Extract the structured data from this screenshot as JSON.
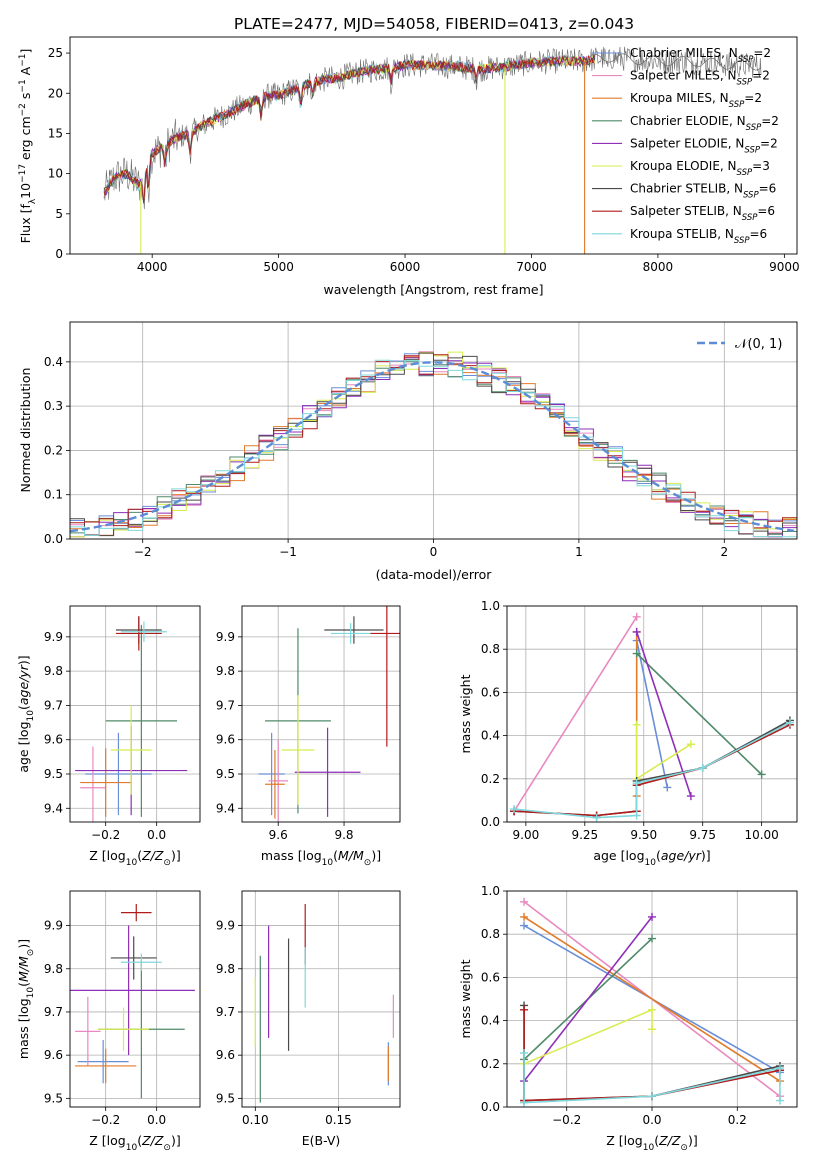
{
  "figure": {
    "title": "PLATE=2477, MJD=54058, FIBERID=0413, z=0.043"
  },
  "models": [
    {
      "name": "Chabrier MILES, N_SSP=2",
      "label": "Chabrier MILES, N",
      "sub": "SSP",
      "tail": "=2",
      "color": "#6a8fd8"
    },
    {
      "name": "Salpeter MILES, N_SSP=2",
      "label": "Salpeter MILES, N",
      "sub": "SSP",
      "tail": "=2",
      "color": "#e889c0"
    },
    {
      "name": "Kroupa MILES, N_SSP=2",
      "label": "Kroupa MILES, N",
      "sub": "SSP",
      "tail": "=2",
      "color": "#e07b2a"
    },
    {
      "name": "Chabrier ELODIE, N_SSP=2",
      "label": "Chabrier ELODIE, N",
      "sub": "SSP",
      "tail": "=2",
      "color": "#4f8a69"
    },
    {
      "name": "Salpeter ELODIE, N_SSP=2",
      "label": "Salpeter ELODIE, N",
      "sub": "SSP",
      "tail": "=2",
      "color": "#8e2fb8"
    },
    {
      "name": "Kroupa ELODIE, N_SSP=3",
      "label": "Kroupa ELODIE, N",
      "sub": "SSP",
      "tail": "=3",
      "color": "#d8ec4f"
    },
    {
      "name": "Chabrier STELIB, N_SSP=6",
      "label": "Chabrier STELIB, N",
      "sub": "SSP",
      "tail": "=6",
      "color": "#4a4a4a"
    },
    {
      "name": "Salpeter STELIB, N_SSP=6",
      "label": "Salpeter STELIB, N",
      "sub": "SSP",
      "tail": "=6",
      "color": "#b01c1c"
    },
    {
      "name": "Kroupa STELIB, N_SSP=6",
      "label": "Kroupa STELIB, N",
      "sub": "SSP",
      "tail": "=6",
      "color": "#7fd8dc"
    }
  ],
  "chart_data": [
    {
      "id": "spectrum",
      "type": "line",
      "xlabel": "wavelength [Angstrom, rest frame]",
      "ylabel": "Flux [f_λ 10^-17 erg cm^-2 s^-1 A^-1]",
      "xlim": [
        3350,
        9100
      ],
      "ylim": [
        0,
        27
      ],
      "xticks": [
        4000,
        5000,
        6000,
        7000,
        8000,
        9000
      ],
      "yticks": [
        0,
        5,
        10,
        15,
        20,
        25
      ],
      "legend": "upper right",
      "grid": false,
      "continuum": {
        "x": [
          3620,
          3700,
          3800,
          3900,
          3950,
          4000,
          4100,
          4200,
          4300,
          4400,
          4500,
          4600,
          4700,
          4800,
          4900,
          5000,
          5100,
          5200,
          5300,
          5400,
          5500,
          5600,
          5700,
          5800,
          5900,
          6000,
          6200,
          6400,
          6600,
          6800,
          7000,
          7200,
          7400,
          7600,
          7800,
          8000,
          8200,
          8400,
          8600,
          8800
        ],
        "y": [
          7.5,
          9.5,
          10.0,
          8.5,
          11.0,
          12.5,
          13.5,
          14.5,
          15.0,
          16.0,
          16.8,
          17.5,
          18.3,
          19.0,
          19.6,
          19.8,
          20.3,
          21.0,
          21.5,
          21.8,
          22.0,
          22.5,
          22.8,
          23.0,
          23.2,
          23.5,
          23.5,
          23.3,
          23.0,
          23.3,
          23.8,
          24.0,
          24.0,
          24.5,
          24.2,
          24.0,
          24.0,
          23.8,
          23.5,
          23.5
        ]
      },
      "annotations": [
        {
          "series": "Kroupa ELODIE, N_SSP=3",
          "x": 3910,
          "y": 0
        },
        {
          "series": "Kroupa ELODIE, N_SSP=3",
          "x": 6790,
          "y": 0
        },
        {
          "series": "Kroupa MILES, N_SSP=2",
          "x": 7420,
          "y": 0
        }
      ]
    },
    {
      "id": "residuals",
      "type": "histogram",
      "xlabel": "(data-model)/error",
      "ylabel": "Normed distribution",
      "xlim": [
        -2.5,
        2.5
      ],
      "ylim": [
        0,
        0.49
      ],
      "xticks": [
        -2,
        -1,
        0,
        1,
        2
      ],
      "yticks": [
        0.0,
        0.1,
        0.2,
        0.3,
        0.4
      ],
      "grid": true,
      "legend_entry": "𝒩(0, 1)",
      "bin_width": 0.1,
      "reference_curve": "normal(0,1)"
    },
    {
      "id": "age_vs_Z",
      "type": "errorbar",
      "xlabel": "Z [log10(Z/Z⊙)]",
      "ylabel": "age [log10(age/yr)]",
      "xlim": [
        -0.34,
        0.17
      ],
      "ylim": [
        9.36,
        9.99
      ],
      "xticks": [
        -0.2,
        0.0
      ],
      "yticks": [
        9.4,
        9.5,
        9.6,
        9.7,
        9.8,
        9.9
      ],
      "grid": true,
      "points": [
        {
          "series": "Chabrier MILES",
          "x": -0.15,
          "xerr": 0.13,
          "y": 9.5,
          "yerr": 0.12
        },
        {
          "series": "Salpeter MILES",
          "x": -0.25,
          "xerr": 0.05,
          "y": 9.46,
          "yerr": 0.12
        },
        {
          "series": "Kroupa MILES",
          "x": -0.2,
          "xerr": 0.1,
          "y": 9.475,
          "yerr": 0.1
        },
        {
          "series": "Chabrier ELODIE",
          "x": -0.06,
          "xerr": 0.14,
          "y": 9.655,
          "yerr": 0.28
        },
        {
          "series": "Salpeter ELODIE",
          "x": -0.1,
          "xerr": 0.22,
          "y": 9.51,
          "yerr": 0.13
        },
        {
          "series": "Kroupa ELODIE",
          "x": -0.1,
          "xerr": 0.08,
          "y": 9.57,
          "yerr": 0.13
        },
        {
          "series": "Chabrier STELIB",
          "x": -0.07,
          "xerr": 0.09,
          "y": 9.92,
          "yerr": 0.04
        },
        {
          "series": "Salpeter STELIB",
          "x": -0.07,
          "xerr": 0.09,
          "y": 9.91,
          "yerr": 0.05
        },
        {
          "series": "Kroupa STELIB",
          "x": -0.05,
          "xerr": 0.09,
          "y": 9.915,
          "yerr": 0.03
        }
      ]
    },
    {
      "id": "age_vs_mass",
      "type": "errorbar",
      "xlabel": "mass [log10(M/M⊙)]",
      "ylabel": "",
      "xlim": [
        9.49,
        9.97
      ],
      "ylim": [
        9.36,
        9.99
      ],
      "xticks": [
        9.6,
        9.8
      ],
      "yticks": [
        9.4,
        9.5,
        9.6,
        9.7,
        9.8,
        9.9
      ],
      "grid": true,
      "points": [
        {
          "series": "Chabrier MILES",
          "x": 9.58,
          "xerr": 0.04,
          "y": 9.5,
          "yerr": 0.12
        },
        {
          "series": "Salpeter MILES",
          "x": 9.6,
          "xerr": 0.03,
          "y": 9.48,
          "yerr": 0.12
        },
        {
          "series": "Kroupa MILES",
          "x": 9.59,
          "xerr": 0.03,
          "y": 9.47,
          "yerr": 0.1
        },
        {
          "series": "Chabrier ELODIE",
          "x": 9.66,
          "xerr": 0.1,
          "y": 9.655,
          "yerr": 0.27
        },
        {
          "series": "Salpeter ELODIE",
          "x": 9.75,
          "xerr": 0.1,
          "y": 9.505,
          "yerr": 0.13
        },
        {
          "series": "Kroupa ELODIE",
          "x": 9.66,
          "xerr": 0.05,
          "y": 9.57,
          "yerr": 0.16
        },
        {
          "series": "Chabrier STELIB",
          "x": 9.83,
          "xerr": 0.09,
          "y": 9.92,
          "yerr": 0.04
        },
        {
          "series": "Salpeter STELIB",
          "x": 9.93,
          "xerr": 0.05,
          "y": 9.91,
          "yerr": 0.33
        },
        {
          "series": "Kroupa STELIB",
          "x": 9.82,
          "xerr": 0.06,
          "y": 9.91,
          "yerr": 0.03
        }
      ]
    },
    {
      "id": "mass_weight_vs_age",
      "type": "line",
      "xlabel": "age [log10(age/yr)]",
      "ylabel": "mass weight",
      "xlim": [
        8.92,
        10.15
      ],
      "ylim": [
        0,
        1.0
      ],
      "xticks": [
        9.0,
        9.25,
        9.5,
        9.75,
        10.0
      ],
      "yticks": [
        0.0,
        0.2,
        0.4,
        0.6,
        0.8,
        1.0
      ],
      "grid": true,
      "series": [
        {
          "name": "Chabrier MILES",
          "x": [
            9.47,
            9.6
          ],
          "y": [
            0.84,
            0.16
          ]
        },
        {
          "name": "Salpeter MILES",
          "x": [
            8.95,
            9.47
          ],
          "y": [
            0.05,
            0.95
          ]
        },
        {
          "name": "Kroupa MILES",
          "x": [
            9.47,
            9.47
          ],
          "y": [
            0.12,
            0.88
          ]
        },
        {
          "name": "Chabrier ELODIE",
          "x": [
            9.47,
            10.0
          ],
          "y": [
            0.78,
            0.22
          ]
        },
        {
          "name": "Salpeter ELODIE",
          "x": [
            9.47,
            9.7
          ],
          "y": [
            0.88,
            0.12
          ]
        },
        {
          "name": "Kroupa ELODIE",
          "x": [
            9.47,
            9.47,
            9.7
          ],
          "y": [
            0.45,
            0.2,
            0.36
          ]
        },
        {
          "name": "Chabrier STELIB",
          "x": [
            8.95,
            9.3,
            9.47,
            9.47,
            9.75,
            10.12
          ],
          "y": [
            0.05,
            0.03,
            0.05,
            0.19,
            0.25,
            0.47
          ]
        },
        {
          "name": "Salpeter STELIB",
          "x": [
            8.95,
            9.3,
            9.47,
            9.47,
            9.75,
            10.12
          ],
          "y": [
            0.05,
            0.03,
            0.05,
            0.17,
            0.25,
            0.45
          ]
        },
        {
          "name": "Kroupa STELIB",
          "x": [
            8.95,
            9.3,
            9.47,
            9.47,
            9.75,
            10.12
          ],
          "y": [
            0.06,
            0.02,
            0.03,
            0.18,
            0.25,
            0.46
          ]
        }
      ]
    },
    {
      "id": "mass_vs_Z",
      "type": "errorbar",
      "xlabel": "Z [log10(Z/Z⊙)]",
      "ylabel": "mass [log10(M/M⊙)]",
      "xlim": [
        -0.34,
        0.17
      ],
      "ylim": [
        9.48,
        9.98
      ],
      "xticks": [
        -0.2,
        0.0
      ],
      "yticks": [
        9.5,
        9.6,
        9.7,
        9.8,
        9.9
      ],
      "grid": true,
      "points": [
        {
          "series": "Chabrier MILES",
          "x": -0.21,
          "xerr": 0.1,
          "y": 9.585,
          "yerr": 0.05
        },
        {
          "series": "Salpeter MILES",
          "x": -0.27,
          "xerr": 0.05,
          "y": 9.655,
          "yerr": 0.08
        },
        {
          "series": "Kroupa MILES",
          "x": -0.2,
          "xerr": 0.12,
          "y": 9.575,
          "yerr": 0.04
        },
        {
          "series": "Chabrier ELODIE",
          "x": -0.06,
          "xerr": 0.17,
          "y": 9.66,
          "yerr": 0.16
        },
        {
          "series": "Salpeter ELODIE",
          "x": -0.11,
          "xerr": 0.26,
          "y": 9.75,
          "yerr": 0.15
        },
        {
          "series": "Kroupa ELODIE",
          "x": -0.13,
          "xerr": 0.1,
          "y": 9.66,
          "yerr": 0.05
        },
        {
          "series": "Chabrier STELIB",
          "x": -0.09,
          "xerr": 0.09,
          "y": 9.825,
          "yerr": 0.05
        },
        {
          "series": "Salpeter STELIB",
          "x": -0.08,
          "xerr": 0.06,
          "y": 9.93,
          "yerr": 0.02
        },
        {
          "series": "Kroupa STELIB",
          "x": -0.06,
          "xerr": 0.08,
          "y": 9.815,
          "yerr": 0.02
        }
      ]
    },
    {
      "id": "mass_vs_EBV",
      "type": "errorbar",
      "xlabel": "E(B-V)",
      "ylabel": "",
      "xlim": [
        0.092,
        0.187
      ],
      "ylim": [
        9.48,
        9.98
      ],
      "xticks": [
        0.1,
        0.15
      ],
      "yticks": [
        9.5,
        9.6,
        9.7,
        9.8,
        9.9
      ],
      "grid": true,
      "points": [
        {
          "series": "Chabrier MILES",
          "x": 0.18,
          "y": 9.58,
          "yerr": 0.05
        },
        {
          "series": "Salpeter MILES",
          "x": 0.183,
          "y": 9.69,
          "yerr": 0.05
        },
        {
          "series": "Kroupa MILES",
          "x": 0.18,
          "y": 9.58,
          "yerr": 0.04
        },
        {
          "series": "Chabrier ELODIE",
          "x": 0.103,
          "y": 9.66,
          "yerr": 0.17
        },
        {
          "series": "Salpeter ELODIE",
          "x": 0.108,
          "y": 9.77,
          "yerr": 0.13
        },
        {
          "series": "Kroupa ELODIE",
          "x": 0.1,
          "y": 9.7,
          "yerr": 0.08
        },
        {
          "series": "Chabrier STELIB",
          "x": 0.12,
          "y": 9.74,
          "yerr": 0.13
        },
        {
          "series": "Salpeter STELIB",
          "x": 0.13,
          "y": 9.88,
          "yerr": 0.07
        },
        {
          "series": "Kroupa STELIB",
          "x": 0.13,
          "y": 9.78,
          "yerr": 0.07
        }
      ]
    },
    {
      "id": "mass_weight_vs_Z",
      "type": "line",
      "xlabel": "Z [log10(Z/Z⊙)]",
      "ylabel": "mass weight",
      "xlim": [
        -0.34,
        0.34
      ],
      "ylim": [
        0,
        1.0
      ],
      "xticks": [
        -0.2,
        0.0,
        0.2
      ],
      "yticks": [
        0.0,
        0.2,
        0.4,
        0.6,
        0.8,
        1.0
      ],
      "grid": true,
      "series": [
        {
          "name": "Chabrier MILES",
          "x": [
            -0.3,
            0.3
          ],
          "y": [
            0.84,
            0.16
          ]
        },
        {
          "name": "Salpeter MILES",
          "x": [
            -0.3,
            0.3
          ],
          "y": [
            0.95,
            0.05
          ]
        },
        {
          "name": "Kroupa MILES",
          "x": [
            -0.3,
            0.3
          ],
          "y": [
            0.88,
            0.12
          ]
        },
        {
          "name": "Chabrier ELODIE",
          "x": [
            -0.3,
            0.0
          ],
          "y": [
            0.22,
            0.78
          ]
        },
        {
          "name": "Salpeter ELODIE",
          "x": [
            -0.3,
            0.0
          ],
          "y": [
            0.12,
            0.88
          ]
        },
        {
          "name": "Kroupa ELODIE",
          "x": [
            -0.3,
            0.0,
            0.0
          ],
          "y": [
            0.2,
            0.45,
            0.36
          ]
        },
        {
          "name": "Chabrier STELIB",
          "x": [
            -0.3,
            -0.3,
            0.0,
            0.3,
            0.3
          ],
          "y": [
            0.47,
            0.03,
            0.05,
            0.19,
            0.17
          ]
        },
        {
          "name": "Salpeter STELIB",
          "x": [
            -0.3,
            -0.3,
            0.0,
            0.3
          ],
          "y": [
            0.45,
            0.03,
            0.05,
            0.17
          ]
        },
        {
          "name": "Kroupa STELIB",
          "x": [
            -0.3,
            -0.3,
            0.0,
            0.3,
            0.3
          ],
          "y": [
            0.25,
            0.02,
            0.05,
            0.18,
            0.03
          ]
        }
      ]
    }
  ]
}
